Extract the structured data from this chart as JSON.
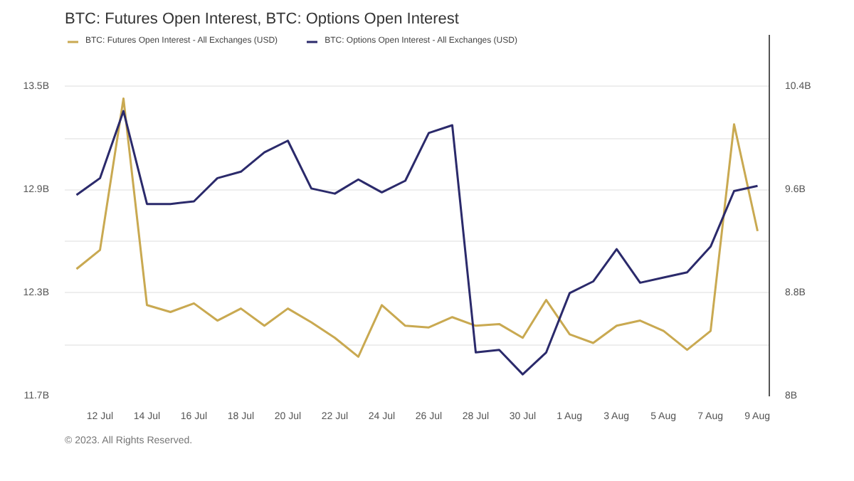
{
  "chart_data": {
    "type": "line",
    "title": "BTC: Futures Open Interest, BTC: Options Open Interest",
    "x": [
      "2023-07-11",
      "2023-07-12",
      "2023-07-13",
      "2023-07-14",
      "2023-07-15",
      "2023-07-16",
      "2023-07-17",
      "2023-07-18",
      "2023-07-19",
      "2023-07-20",
      "2023-07-21",
      "2023-07-22",
      "2023-07-23",
      "2023-07-24",
      "2023-07-25",
      "2023-07-26",
      "2023-07-27",
      "2023-07-28",
      "2023-07-29",
      "2023-07-30",
      "2023-07-31",
      "2023-08-01",
      "2023-08-02",
      "2023-08-03",
      "2023-08-04",
      "2023-08-05",
      "2023-08-06",
      "2023-08-07",
      "2023-08-08",
      "2023-08-09"
    ],
    "series": [
      {
        "name": "BTC: Futures Open Interest - All Exchanges (USD)",
        "color": "#c9a951",
        "values": [
          12.44,
          12.55,
          13.43,
          12.23,
          12.19,
          12.24,
          12.14,
          12.21,
          12.11,
          12.21,
          12.13,
          12.04,
          11.93,
          12.23,
          12.11,
          12.1,
          12.16,
          12.11,
          12.12,
          12.04,
          12.26,
          12.06,
          12.01,
          12.11,
          12.14,
          12.08,
          11.97,
          12.08,
          13.28,
          12.66
        ]
      },
      {
        "name": "BTC: Options Open Interest - All Exchanges (USD)",
        "color": "#2b2a6b",
        "axis": "y2",
        "values": [
          9.56,
          9.69,
          10.21,
          9.49,
          9.49,
          9.51,
          9.69,
          9.74,
          9.89,
          9.98,
          9.61,
          9.57,
          9.68,
          9.58,
          9.67,
          10.04,
          10.1,
          8.34,
          8.36,
          8.17,
          8.34,
          8.8,
          8.89,
          9.14,
          8.88,
          8.92,
          8.96,
          9.16,
          9.59,
          9.63
        ]
      }
    ],
    "xlim": [
      "2023-07-10T12:00",
      "2023-08-09T12:00"
    ],
    "xticks": [
      {
        "value": "2023-07-12",
        "label": "12 Jul"
      },
      {
        "value": "2023-07-14",
        "label": "14 Jul"
      },
      {
        "value": "2023-07-16",
        "label": "16 Jul"
      },
      {
        "value": "2023-07-18",
        "label": "18 Jul"
      },
      {
        "value": "2023-07-20",
        "label": "20 Jul"
      },
      {
        "value": "2023-07-22",
        "label": "22 Jul"
      },
      {
        "value": "2023-07-24",
        "label": "24 Jul"
      },
      {
        "value": "2023-07-26",
        "label": "26 Jul"
      },
      {
        "value": "2023-07-28",
        "label": "28 Jul"
      },
      {
        "value": "2023-07-30",
        "label": "30 Jul"
      },
      {
        "value": "2023-08-01",
        "label": "1 Aug"
      },
      {
        "value": "2023-08-03",
        "label": "3 Aug"
      },
      {
        "value": "2023-08-05",
        "label": "5 Aug"
      },
      {
        "value": "2023-08-07",
        "label": "7 Aug"
      },
      {
        "value": "2023-08-09",
        "label": "9 Aug"
      }
    ],
    "ylim": [
      11.7,
      13.8
    ],
    "yticks": [
      {
        "value": 11.7,
        "label": "11.7B"
      },
      {
        "value": 12.0,
        "label": null
      },
      {
        "value": 12.3,
        "label": "12.3B"
      },
      {
        "value": 12.6,
        "label": null
      },
      {
        "value": 12.9,
        "label": "12.9B"
      },
      {
        "value": 13.2,
        "label": null
      },
      {
        "value": 13.5,
        "label": "13.5B"
      }
    ],
    "y2lim": [
      8,
      10.8
    ],
    "y2ticks": [
      {
        "value": 8,
        "label": "8B"
      },
      {
        "value": 8.4,
        "label": null
      },
      {
        "value": 8.8,
        "label": "8.8B"
      },
      {
        "value": 9.2,
        "label": null
      },
      {
        "value": 9.6,
        "label": "9.6B"
      },
      {
        "value": 10.0,
        "label": null
      },
      {
        "value": 10.4,
        "label": "10.4B"
      }
    ],
    "grid": "y",
    "legend": "top left",
    "line_style": "solid",
    "annotations": [
      "© 2023. All Rights Reserved."
    ]
  }
}
